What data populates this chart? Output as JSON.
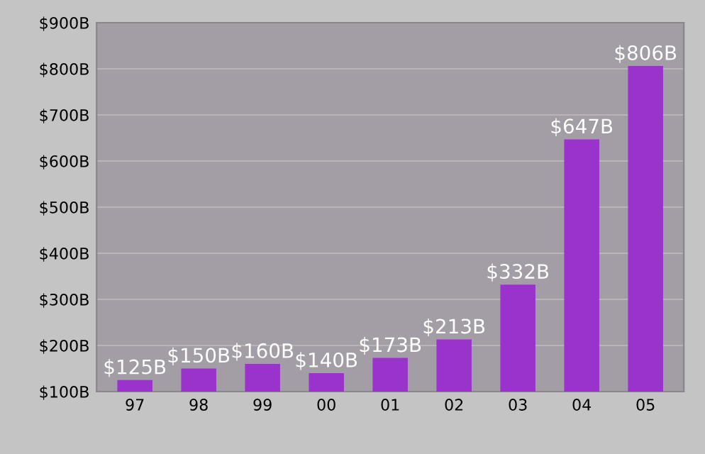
{
  "chart_data": {
    "type": "bar",
    "categories": [
      "97",
      "98",
      "99",
      "00",
      "01",
      "02",
      "03",
      "04",
      "05"
    ],
    "values": [
      125,
      150,
      160,
      140,
      173,
      213,
      332,
      647,
      806
    ],
    "value_labels": [
      "$125B",
      "$150B",
      "$160B",
      "$140B",
      "$173B",
      "$213B",
      "$332B",
      "$647B",
      "$806B"
    ],
    "color": "#9933cc",
    "ylim": [
      100,
      900
    ],
    "yticks": [
      {
        "value": 100,
        "label": "$100B"
      },
      {
        "value": 200,
        "label": "$200B"
      },
      {
        "value": 300,
        "label": "$300B"
      },
      {
        "value": 400,
        "label": "$400B"
      },
      {
        "value": 500,
        "label": "$500B"
      },
      {
        "value": 600,
        "label": "$600B"
      },
      {
        "value": 700,
        "label": "$700B"
      },
      {
        "value": 800,
        "label": "$800B"
      },
      {
        "value": 900,
        "label": "$900B"
      }
    ],
    "grid": "y"
  }
}
